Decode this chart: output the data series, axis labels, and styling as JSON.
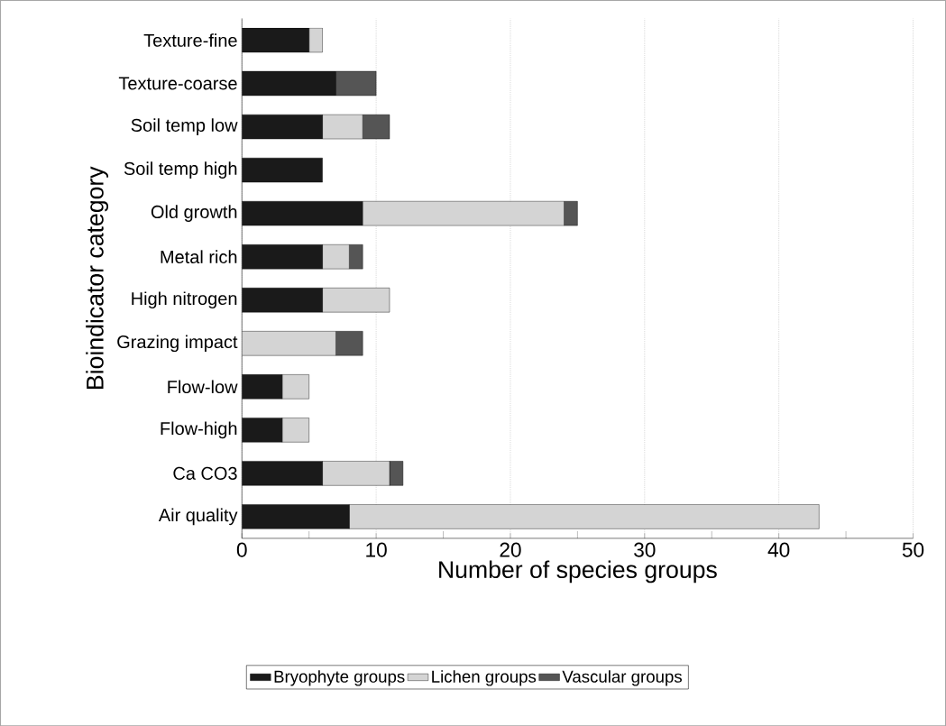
{
  "chart_data": {
    "type": "bar",
    "orientation": "horizontal",
    "stacked": true,
    "categories": [
      "Texture-fine",
      "Texture-coarse",
      "Soil temp low",
      "Soil temp high",
      "Old growth",
      "Metal rich",
      "High nitrogen",
      "Grazing impact",
      "Flow-low",
      "Flow-high",
      "Ca CO3",
      "Air quality"
    ],
    "series": [
      {
        "name": "Bryophyte groups",
        "color": "#1a1a1a",
        "values": [
          5,
          7,
          6,
          6,
          9,
          6,
          6,
          0,
          3,
          3,
          6,
          8
        ]
      },
      {
        "name": "Lichen groups",
        "color": "#d4d4d4",
        "values": [
          1,
          0,
          3,
          0,
          15,
          2,
          5,
          7,
          2,
          2,
          5,
          35
        ]
      },
      {
        "name": "Vascular groups",
        "color": "#555555",
        "values": [
          0,
          3,
          2,
          0,
          1,
          1,
          0,
          2,
          0,
          0,
          1,
          0
        ]
      }
    ],
    "xlim": [
      0,
      50
    ],
    "xticks": [
      0,
      10,
      20,
      30,
      40,
      50
    ],
    "xlabel": "Number of species groups",
    "ylabel": "Bioindicator category",
    "grid": "x",
    "legend": "bottom"
  }
}
